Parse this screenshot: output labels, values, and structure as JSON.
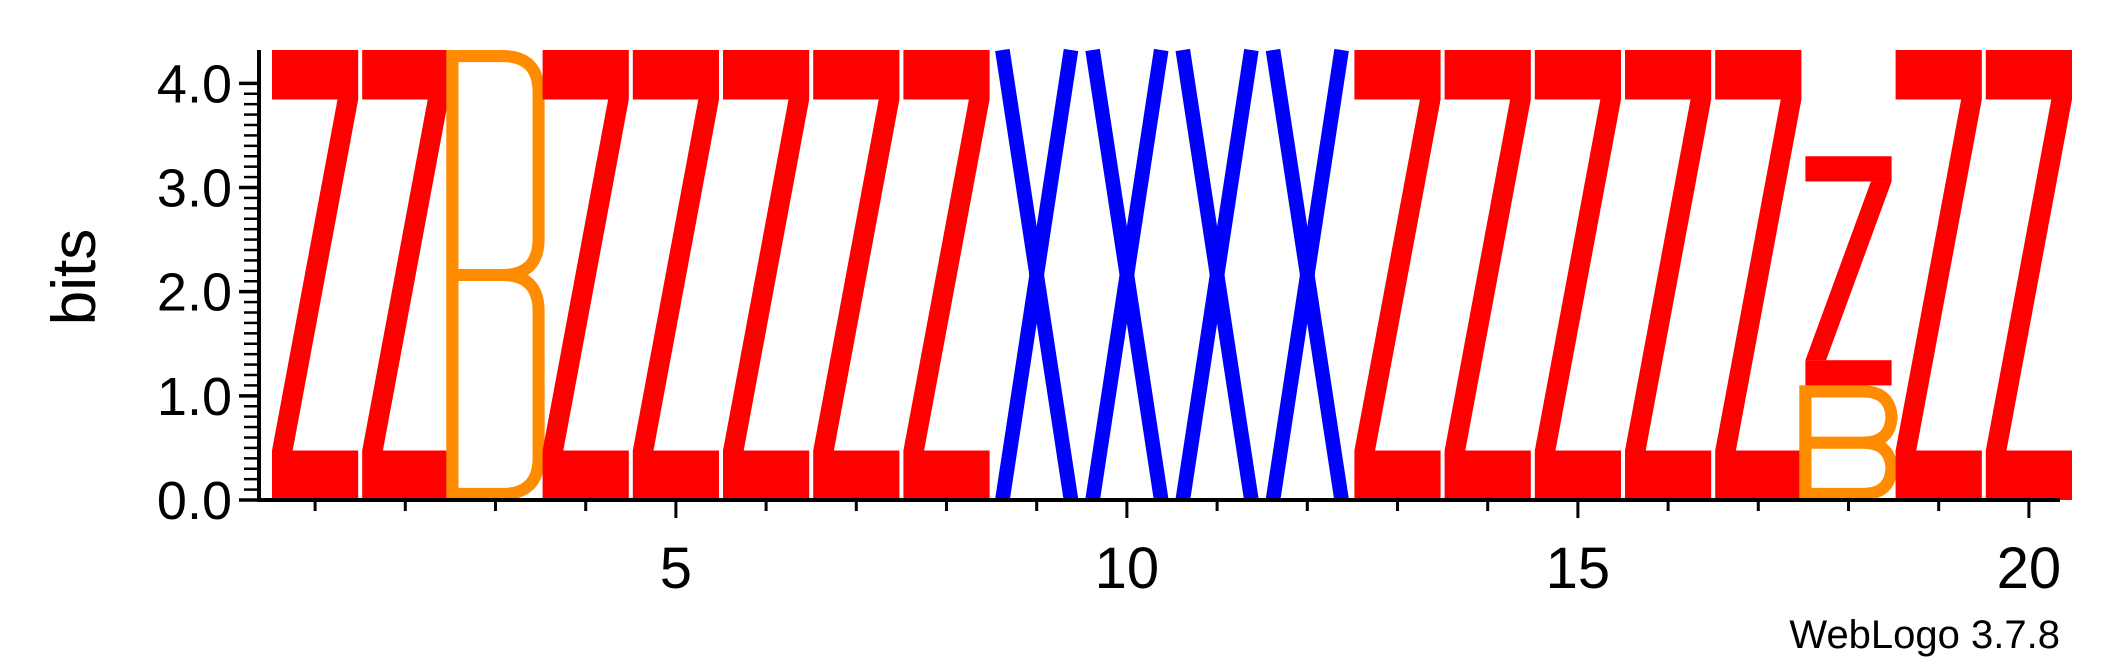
{
  "chart_data": {
    "type": "sequence-logo",
    "ylabel": "bits",
    "ylim": [
      0,
      4.32
    ],
    "y_ticks": [
      "0.0",
      "1.0",
      "2.0",
      "3.0",
      "4.0"
    ],
    "x_ticks": [
      "5",
      "10",
      "15",
      "20"
    ],
    "credit": "WebLogo 3.7.8",
    "colors": {
      "Z": "#ff0000",
      "B": "#ff8c00",
      "X": "#0000ff"
    },
    "positions": [
      {
        "pos": 1,
        "stack": [
          {
            "letter": "Z",
            "bits": 4.32
          }
        ]
      },
      {
        "pos": 2,
        "stack": [
          {
            "letter": "Z",
            "bits": 4.32
          }
        ]
      },
      {
        "pos": 3,
        "stack": [
          {
            "letter": "B",
            "bits": 4.32
          }
        ]
      },
      {
        "pos": 4,
        "stack": [
          {
            "letter": "Z",
            "bits": 4.32
          }
        ]
      },
      {
        "pos": 5,
        "stack": [
          {
            "letter": "Z",
            "bits": 4.32
          }
        ]
      },
      {
        "pos": 6,
        "stack": [
          {
            "letter": "Z",
            "bits": 4.32
          }
        ]
      },
      {
        "pos": 7,
        "stack": [
          {
            "letter": "Z",
            "bits": 4.32
          }
        ]
      },
      {
        "pos": 8,
        "stack": [
          {
            "letter": "Z",
            "bits": 4.32
          }
        ]
      },
      {
        "pos": 9,
        "stack": [
          {
            "letter": "X",
            "bits": 4.32
          }
        ]
      },
      {
        "pos": 10,
        "stack": [
          {
            "letter": "X",
            "bits": 4.32
          }
        ]
      },
      {
        "pos": 11,
        "stack": [
          {
            "letter": "X",
            "bits": 4.32
          }
        ]
      },
      {
        "pos": 12,
        "stack": [
          {
            "letter": "X",
            "bits": 4.32
          }
        ]
      },
      {
        "pos": 13,
        "stack": [
          {
            "letter": "Z",
            "bits": 4.32
          }
        ]
      },
      {
        "pos": 14,
        "stack": [
          {
            "letter": "Z",
            "bits": 4.32
          }
        ]
      },
      {
        "pos": 15,
        "stack": [
          {
            "letter": "Z",
            "bits": 4.32
          }
        ]
      },
      {
        "pos": 16,
        "stack": [
          {
            "letter": "Z",
            "bits": 4.32
          }
        ]
      },
      {
        "pos": 17,
        "stack": [
          {
            "letter": "Z",
            "bits": 4.32
          }
        ]
      },
      {
        "pos": 18,
        "stack": [
          {
            "letter": "B",
            "bits": 1.1
          },
          {
            "letter": "Z",
            "bits": 2.2
          }
        ]
      },
      {
        "pos": 19,
        "stack": [
          {
            "letter": "Z",
            "bits": 4.32
          }
        ]
      },
      {
        "pos": 20,
        "stack": [
          {
            "letter": "Z",
            "bits": 4.32
          }
        ]
      }
    ]
  }
}
